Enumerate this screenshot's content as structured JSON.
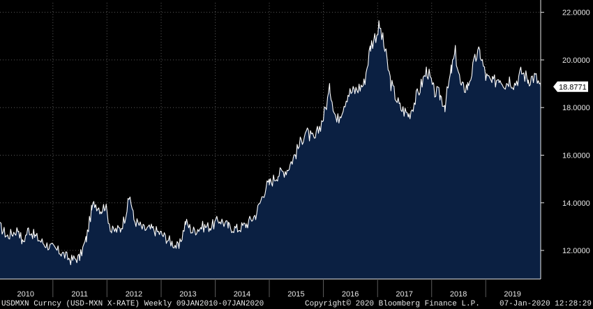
{
  "chart_data": {
    "type": "area",
    "title": "",
    "xlabel": "",
    "ylabel": "",
    "series": [
      {
        "name": "USDMXN Curncy",
        "x": [
          "2010-01-09",
          "2010-03-01",
          "2010-05-15",
          "2010-06-10",
          "2010-07-20",
          "2010-09-01",
          "2010-11-01",
          "2011-01-01",
          "2011-03-01",
          "2011-05-01",
          "2011-07-01",
          "2011-08-15",
          "2011-09-20",
          "2011-10-10",
          "2011-11-25",
          "2011-12-20",
          "2012-02-01",
          "2012-04-01",
          "2012-05-01",
          "2012-06-05",
          "2012-07-01",
          "2012-09-01",
          "2012-11-01",
          "2013-01-01",
          "2013-03-01",
          "2013-05-01",
          "2013-06-15",
          "2013-08-01",
          "2013-10-01",
          "2013-12-01",
          "2014-02-01",
          "2014-04-01",
          "2014-06-01",
          "2014-08-01",
          "2014-10-01",
          "2014-12-10",
          "2015-01-01",
          "2015-03-01",
          "2015-05-01",
          "2015-07-01",
          "2015-09-01",
          "2015-11-01",
          "2016-01-01",
          "2016-02-15",
          "2016-04-01",
          "2016-06-15",
          "2016-08-01",
          "2016-10-01",
          "2016-11-15",
          "2017-01-15",
          "2017-02-20",
          "2017-04-01",
          "2017-06-01",
          "2017-08-01",
          "2017-10-01",
          "2017-12-01",
          "2018-01-15",
          "2018-03-01",
          "2018-04-01",
          "2018-05-15",
          "2018-06-10",
          "2018-07-20",
          "2018-09-01",
          "2018-11-01",
          "2018-11-25",
          "2019-01-01",
          "2019-02-15",
          "2019-04-01",
          "2019-05-15",
          "2019-06-10",
          "2019-07-15",
          "2019-09-01",
          "2019-10-15",
          "2019-12-01",
          "2020-01-07"
        ],
        "values": [
          13.0,
          12.6,
          12.9,
          12.3,
          12.9,
          12.6,
          12.3,
          12.1,
          11.9,
          11.6,
          11.7,
          12.5,
          13.7,
          14.0,
          13.7,
          13.9,
          12.8,
          12.9,
          13.4,
          14.3,
          13.3,
          12.9,
          12.9,
          12.7,
          12.4,
          12.1,
          13.2,
          12.8,
          13.0,
          13.0,
          13.3,
          13.0,
          12.9,
          13.1,
          13.5,
          14.7,
          14.8,
          15.2,
          15.4,
          16.1,
          17.0,
          16.6,
          17.6,
          18.8,
          17.4,
          18.6,
          18.7,
          19.0,
          20.6,
          21.4,
          20.4,
          19.0,
          18.0,
          17.7,
          18.6,
          19.6,
          18.7,
          18.5,
          18.1,
          19.6,
          20.3,
          18.8,
          18.9,
          20.2,
          20.3,
          19.3,
          19.0,
          19.3,
          19.0,
          19.2,
          19.0,
          19.5,
          19.2,
          19.3,
          18.8771
        ]
      }
    ],
    "x_ticks": [
      "2010",
      "2011",
      "2012",
      "2013",
      "2014",
      "2015",
      "2016",
      "2017",
      "2018",
      "2019"
    ],
    "y_ticks": [
      "12.0000",
      "14.0000",
      "16.0000",
      "18.0000",
      "20.0000",
      "22.0000"
    ],
    "ylim": [
      10.8,
      22.4
    ],
    "xlim": [
      "2010-01-09",
      "2020-01-07"
    ],
    "grid": true,
    "last_value_label": "18.8771",
    "colors": {
      "background": "#000000",
      "area_fill": "#0b2042",
      "line": "#ffffff",
      "grid": "#5a5a5a",
      "text": "#e8e8e8"
    }
  },
  "footer": {
    "left": "USDMXN Curncy (USD-MXN X-RATE) Weekly 09JAN2010-07JAN2020",
    "center": "Copyright© 2020 Bloomberg Finance L.P.",
    "right": "07-Jan-2020 12:28:29"
  }
}
